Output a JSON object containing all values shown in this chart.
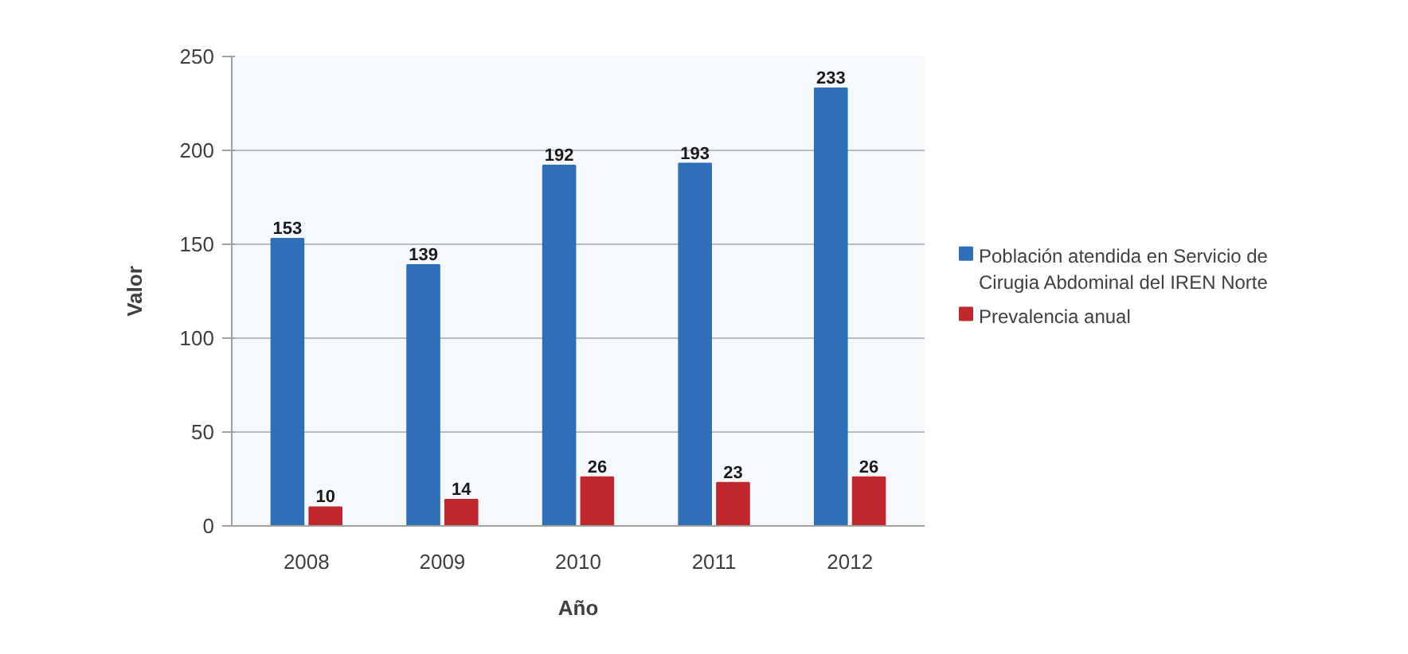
{
  "chart_data": {
    "type": "bar",
    "categories": [
      "2008",
      "2009",
      "2010",
      "2011",
      "2012"
    ],
    "series": [
      {
        "name": "Población atendida en Servicio de Cirugia Abdominal del IREN Norte",
        "color": "#2f6fb7",
        "values": [
          153,
          139,
          192,
          193,
          233
        ]
      },
      {
        "name": "Prevalencia anual",
        "color": "#c0282d",
        "values": [
          10,
          14,
          26,
          23,
          26
        ]
      }
    ],
    "xlabel": "Año",
    "ylabel": "Valor",
    "ylim": [
      0,
      250
    ],
    "yticks": [
      0,
      50,
      100,
      150,
      200,
      250
    ],
    "grid": "y",
    "legend": "right",
    "data_labels": true
  }
}
